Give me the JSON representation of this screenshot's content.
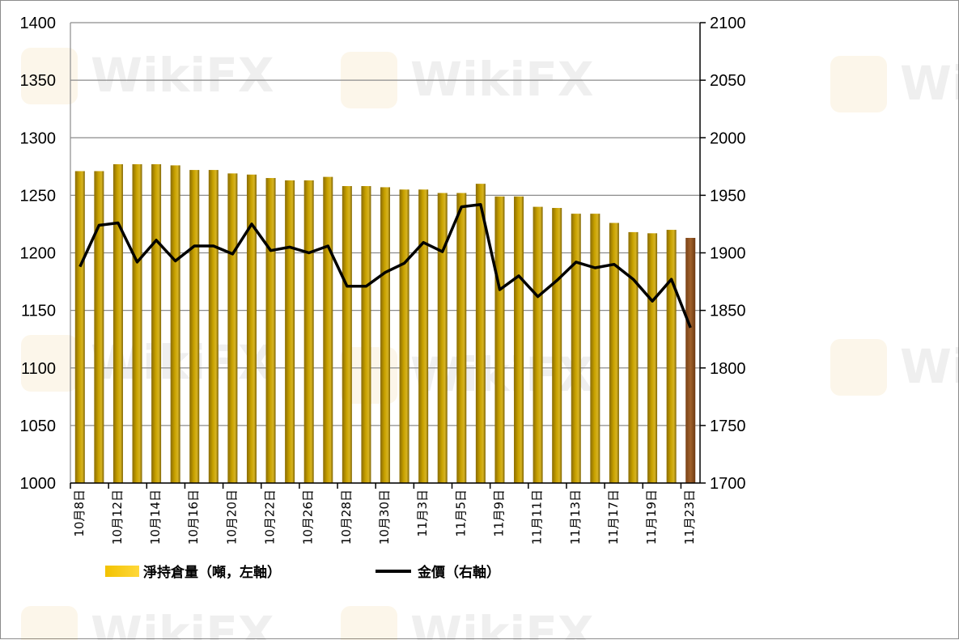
{
  "chart_data": {
    "type": "bar+line",
    "left_axis": {
      "ylim": [
        1000,
        1400
      ],
      "ticks": [
        "1000",
        "1050",
        "1100",
        "1150",
        "1200",
        "1250",
        "1300",
        "1350",
        "1400"
      ]
    },
    "right_axis": {
      "ylim": [
        1700,
        2100
      ],
      "ticks": [
        "1700",
        "1750",
        "1800",
        "1850",
        "1900",
        "1950",
        "2000",
        "2050",
        "2100"
      ]
    },
    "x_tick_labels": [
      "10月8日",
      "10月12日",
      "10月14日",
      "10月16日",
      "10月20日",
      "10月22日",
      "10月26日",
      "10月28日",
      "10月30日",
      "11月3日",
      "11月5日",
      "11月9日",
      "11月11日",
      "11月13日",
      "11月17日",
      "11月19日",
      "11月23日"
    ],
    "grid": "horizontal",
    "legend_position": "bottom-left",
    "series": [
      {
        "name": "淨持倉量（噸，左軸）",
        "type": "bar",
        "axis": "left",
        "color": "#c9a200",
        "highlight_color": "#a0602a",
        "values": [
          1271,
          1271,
          1277,
          1277,
          1277,
          1276,
          1272,
          1272,
          1269,
          1268,
          1265,
          1263,
          1263,
          1266,
          1258,
          1258,
          1257,
          1255,
          1255,
          1252,
          1252,
          1260,
          1249,
          1249,
          1240,
          1239,
          1234,
          1234,
          1226,
          1218,
          1217,
          1220,
          1213
        ]
      },
      {
        "name": "金價（右軸）",
        "type": "line",
        "axis": "right",
        "color": "#000000",
        "values": [
          1888,
          1924,
          1926,
          1892,
          1911,
          1893,
          1906,
          1906,
          1899,
          1925,
          1902,
          1905,
          1900,
          1906,
          1871,
          1871,
          1883,
          1891,
          1909,
          1901,
          1940,
          1942,
          1868,
          1880,
          1862,
          1876,
          1892,
          1887,
          1890,
          1877,
          1858,
          1877,
          1835
        ]
      }
    ]
  },
  "watermark": {
    "text": "WikiFX"
  }
}
